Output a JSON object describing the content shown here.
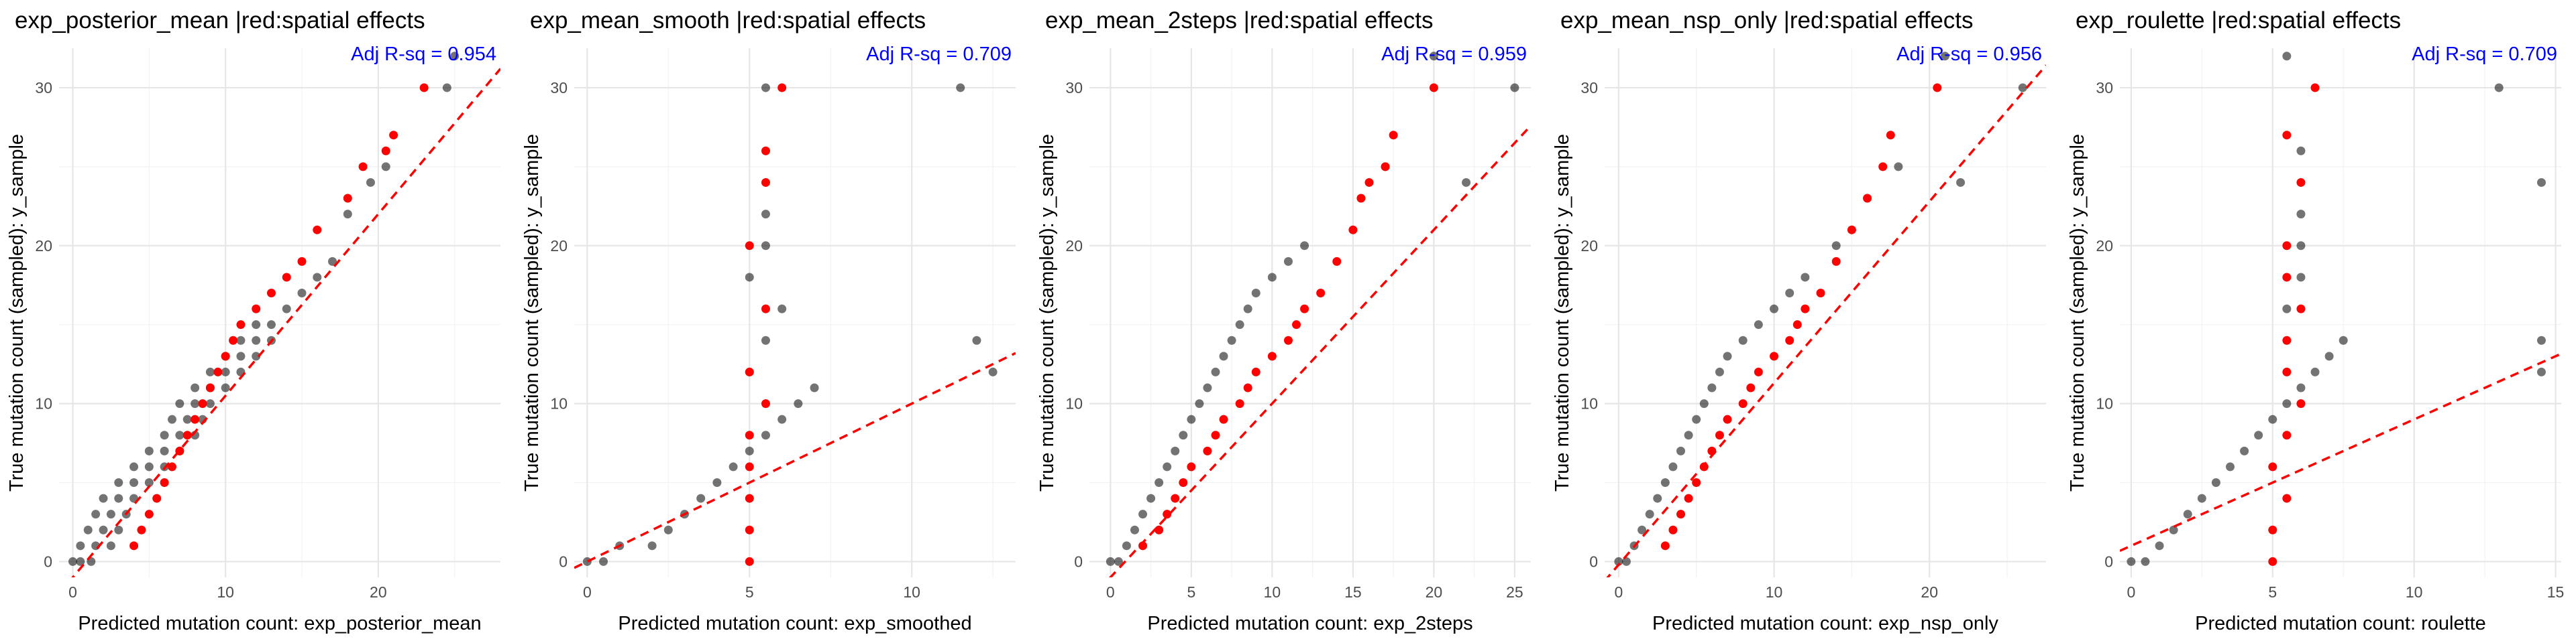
{
  "figure": {
    "ylabel": "True mutation count (sampled): y_sample",
    "colors": {
      "black_points": "#000000",
      "red_points": "#ff0000",
      "fit_line": "#ff0000",
      "annotation": "#0000ff",
      "grid": "#e6e6e6"
    }
  },
  "chart_data": [
    {
      "type": "scatter",
      "title": "exp_posterior_mean |red:spatial effects",
      "annotation": "Adj R-sq = 0.954",
      "xlabel": "Predicted mutation count: exp_posterior_mean",
      "ylabel": "True mutation count (sampled): y_sample",
      "xlim": [
        -0.9,
        28
      ],
      "ylim": [
        -1,
        32.5
      ],
      "xticks": [
        0,
        10,
        20
      ],
      "xtick_labels": [
        "0",
        "10",
        "20"
      ],
      "yticks": [
        0,
        10,
        20,
        30
      ],
      "ytick_labels": [
        "0",
        "10",
        "20",
        "30"
      ],
      "fit_line": {
        "slope": 1.15,
        "intercept": -1.0
      },
      "black_points": [
        [
          0,
          0
        ],
        [
          0.5,
          0
        ],
        [
          1.2,
          0
        ],
        [
          0.5,
          1
        ],
        [
          1.5,
          1
        ],
        [
          2.5,
          1
        ],
        [
          1,
          2
        ],
        [
          2,
          2
        ],
        [
          3,
          2
        ],
        [
          1.5,
          3
        ],
        [
          2.5,
          3
        ],
        [
          3.5,
          3
        ],
        [
          2,
          4
        ],
        [
          3,
          4
        ],
        [
          4,
          4
        ],
        [
          3,
          5
        ],
        [
          4,
          5
        ],
        [
          5,
          5
        ],
        [
          4,
          6
        ],
        [
          5,
          6
        ],
        [
          6,
          6
        ],
        [
          5,
          7
        ],
        [
          6,
          7
        ],
        [
          7,
          7
        ],
        [
          6,
          8
        ],
        [
          7,
          8
        ],
        [
          8,
          8
        ],
        [
          6.5,
          9
        ],
        [
          7.5,
          9
        ],
        [
          8.5,
          9
        ],
        [
          7,
          10
        ],
        [
          8,
          10
        ],
        [
          9,
          10
        ],
        [
          8,
          11
        ],
        [
          9,
          11
        ],
        [
          10,
          11
        ],
        [
          9,
          12
        ],
        [
          10,
          12
        ],
        [
          11,
          12
        ],
        [
          10,
          13
        ],
        [
          11,
          13
        ],
        [
          12,
          13
        ],
        [
          11,
          14
        ],
        [
          12,
          14
        ],
        [
          13,
          14
        ],
        [
          12,
          15
        ],
        [
          13,
          15
        ],
        [
          14,
          16
        ],
        [
          15,
          17
        ],
        [
          16,
          18
        ],
        [
          17,
          19
        ],
        [
          18,
          22
        ],
        [
          19.5,
          24
        ],
        [
          20.5,
          25
        ],
        [
          24.5,
          30
        ],
        [
          25,
          32
        ]
      ],
      "red_points": [
        [
          4,
          1
        ],
        [
          4.5,
          2
        ],
        [
          5,
          3
        ],
        [
          5.5,
          4
        ],
        [
          6,
          5
        ],
        [
          6.5,
          6
        ],
        [
          7,
          7
        ],
        [
          7.5,
          8
        ],
        [
          8,
          9
        ],
        [
          8.5,
          10
        ],
        [
          9,
          11
        ],
        [
          9.5,
          12
        ],
        [
          10,
          13
        ],
        [
          10.5,
          14
        ],
        [
          11,
          15
        ],
        [
          12,
          16
        ],
        [
          13,
          17
        ],
        [
          14,
          18
        ],
        [
          15,
          19
        ],
        [
          16,
          21
        ],
        [
          18,
          23
        ],
        [
          19,
          25
        ],
        [
          20.5,
          26
        ],
        [
          21,
          27
        ],
        [
          23,
          30
        ]
      ]
    },
    {
      "type": "scatter",
      "title": "exp_mean_smooth |red:spatial effects",
      "annotation": "Adj R-sq = 0.709",
      "xlabel": "Predicted mutation count: exp_smoothed",
      "ylabel": "True mutation count (sampled): y_sample",
      "xlim": [
        -0.4,
        13.2
      ],
      "ylim": [
        -1,
        32.5
      ],
      "xticks": [
        0,
        5,
        10
      ],
      "xtick_labels": [
        "0",
        "5",
        "10"
      ],
      "yticks": [
        0,
        10,
        20,
        30
      ],
      "ytick_labels": [
        "0",
        "10",
        "20",
        "30"
      ],
      "fit_line": {
        "slope": 1.0,
        "intercept": 0
      },
      "black_points": [
        [
          0,
          0
        ],
        [
          0.5,
          0
        ],
        [
          1,
          1
        ],
        [
          2,
          1
        ],
        [
          2.5,
          2
        ],
        [
          3,
          3
        ],
        [
          3.5,
          4
        ],
        [
          4,
          5
        ],
        [
          4.5,
          6
        ],
        [
          5,
          7
        ],
        [
          5.5,
          8
        ],
        [
          6,
          9
        ],
        [
          6.5,
          10
        ],
        [
          7,
          11
        ],
        [
          5,
          12
        ],
        [
          5.5,
          14
        ],
        [
          6,
          16
        ],
        [
          5,
          18
        ],
        [
          5.5,
          20
        ],
        [
          5.5,
          22
        ],
        [
          5.5,
          30
        ],
        [
          12,
          14
        ],
        [
          12.5,
          12
        ],
        [
          11.5,
          30
        ]
      ],
      "red_points": [
        [
          5,
          0
        ],
        [
          5,
          2
        ],
        [
          5,
          4
        ],
        [
          5,
          6
        ],
        [
          5,
          8
        ],
        [
          5.5,
          10
        ],
        [
          5,
          12
        ],
        [
          5.5,
          16
        ],
        [
          5,
          20
        ],
        [
          5.5,
          24
        ],
        [
          5.5,
          26
        ],
        [
          6,
          30
        ]
      ]
    },
    {
      "type": "scatter",
      "title": "exp_mean_2steps |red:spatial effects",
      "annotation": "Adj R-sq = 0.959",
      "xlabel": "Predicted mutation count: exp_2steps",
      "ylabel": "True mutation count (sampled): y_sample",
      "xlim": [
        -1.3,
        26
      ],
      "ylim": [
        -1,
        32.5
      ],
      "xticks": [
        0,
        5,
        10,
        15,
        20,
        25
      ],
      "xtick_labels": [
        "0",
        "5",
        "10",
        "15",
        "20",
        "25"
      ],
      "yticks": [
        0,
        10,
        20,
        30
      ],
      "ytick_labels": [
        "0",
        "10",
        "20",
        "30"
      ],
      "fit_line": {
        "slope": 1.1,
        "intercept": -1.0
      },
      "black_points": [
        [
          0,
          0
        ],
        [
          0.5,
          0
        ],
        [
          1,
          1
        ],
        [
          1.5,
          2
        ],
        [
          2,
          3
        ],
        [
          2.5,
          4
        ],
        [
          3,
          5
        ],
        [
          3.5,
          6
        ],
        [
          4,
          7
        ],
        [
          4.5,
          8
        ],
        [
          5,
          9
        ],
        [
          5.5,
          10
        ],
        [
          6,
          11
        ],
        [
          6.5,
          12
        ],
        [
          7,
          13
        ],
        [
          7.5,
          14
        ],
        [
          8,
          15
        ],
        [
          8.5,
          16
        ],
        [
          9,
          17
        ],
        [
          10,
          18
        ],
        [
          11,
          19
        ],
        [
          12,
          20
        ],
        [
          17,
          25
        ],
        [
          20,
          32
        ],
        [
          22,
          24
        ],
        [
          25,
          30
        ]
      ],
      "red_points": [
        [
          2,
          1
        ],
        [
          3,
          2
        ],
        [
          3.5,
          3
        ],
        [
          4,
          4
        ],
        [
          4.5,
          5
        ],
        [
          5,
          6
        ],
        [
          6,
          7
        ],
        [
          6.5,
          8
        ],
        [
          7,
          9
        ],
        [
          8,
          10
        ],
        [
          8.5,
          11
        ],
        [
          9,
          12
        ],
        [
          10,
          13
        ],
        [
          11,
          14
        ],
        [
          11.5,
          15
        ],
        [
          12,
          16
        ],
        [
          13,
          17
        ],
        [
          14,
          19
        ],
        [
          15,
          21
        ],
        [
          15.5,
          23
        ],
        [
          16,
          24
        ],
        [
          17,
          25
        ],
        [
          17.5,
          27
        ],
        [
          20,
          30
        ]
      ]
    },
    {
      "type": "scatter",
      "title": "exp_mean_nsp_only |red:spatial effects",
      "annotation": "Adj R-sq = 0.956",
      "xlabel": "Predicted mutation count: exp_nsp_only",
      "ylabel": "True mutation count (sampled): y_sample",
      "xlim": [
        -0.9,
        27.5
      ],
      "ylim": [
        -1,
        32.5
      ],
      "xticks": [
        0,
        10,
        20
      ],
      "xtick_labels": [
        "0",
        "10",
        "20"
      ],
      "yticks": [
        0,
        10,
        20,
        30
      ],
      "ytick_labels": [
        "0",
        "10",
        "20",
        "30"
      ],
      "fit_line": {
        "slope": 1.15,
        "intercept": -0.2
      },
      "black_points": [
        [
          0,
          0
        ],
        [
          0.5,
          0
        ],
        [
          1,
          1
        ],
        [
          1.5,
          2
        ],
        [
          2,
          3
        ],
        [
          2.5,
          4
        ],
        [
          3,
          5
        ],
        [
          3.5,
          6
        ],
        [
          4,
          7
        ],
        [
          4.5,
          8
        ],
        [
          5,
          9
        ],
        [
          5.5,
          10
        ],
        [
          6,
          11
        ],
        [
          6.5,
          12
        ],
        [
          7,
          13
        ],
        [
          8,
          14
        ],
        [
          9,
          15
        ],
        [
          10,
          16
        ],
        [
          11,
          17
        ],
        [
          12,
          18
        ],
        [
          14,
          20
        ],
        [
          18,
          25
        ],
        [
          21,
          32
        ],
        [
          22,
          24
        ],
        [
          26,
          30
        ]
      ],
      "red_points": [
        [
          3,
          1
        ],
        [
          3.5,
          2
        ],
        [
          4,
          3
        ],
        [
          4.5,
          4
        ],
        [
          5,
          5
        ],
        [
          5.5,
          6
        ],
        [
          6,
          7
        ],
        [
          6.5,
          8
        ],
        [
          7,
          9
        ],
        [
          8,
          10
        ],
        [
          8.5,
          11
        ],
        [
          9,
          12
        ],
        [
          10,
          13
        ],
        [
          11,
          14
        ],
        [
          11.5,
          15
        ],
        [
          12,
          16
        ],
        [
          13,
          17
        ],
        [
          14,
          19
        ],
        [
          15,
          21
        ],
        [
          16,
          23
        ],
        [
          17,
          25
        ],
        [
          17.5,
          27
        ],
        [
          20.5,
          30
        ]
      ]
    },
    {
      "type": "scatter",
      "title": "exp_roulette |red:spatial effects",
      "annotation": "Adj R-sq = 0.709",
      "xlabel": "Predicted mutation count: roulette",
      "ylabel": "True mutation count (sampled): y_sample",
      "xlim": [
        -0.4,
        15.2
      ],
      "ylim": [
        -1,
        32.5
      ],
      "xticks": [
        0,
        5,
        10,
        15
      ],
      "xtick_labels": [
        "0",
        "5",
        "10",
        "15"
      ],
      "yticks": [
        0,
        10,
        20,
        30
      ],
      "ytick_labels": [
        "0",
        "10",
        "20",
        "30"
      ],
      "fit_line": {
        "slope": 0.8,
        "intercept": 1.0
      },
      "black_points": [
        [
          0,
          0
        ],
        [
          0.5,
          0
        ],
        [
          1,
          1
        ],
        [
          1.5,
          2
        ],
        [
          2,
          3
        ],
        [
          2.5,
          4
        ],
        [
          3,
          5
        ],
        [
          3.5,
          6
        ],
        [
          4,
          7
        ],
        [
          4.5,
          8
        ],
        [
          5,
          9
        ],
        [
          5.5,
          10
        ],
        [
          6,
          11
        ],
        [
          6.5,
          12
        ],
        [
          7,
          13
        ],
        [
          7.5,
          14
        ],
        [
          5.5,
          16
        ],
        [
          6,
          18
        ],
        [
          6,
          20
        ],
        [
          6,
          22
        ],
        [
          6,
          26
        ],
        [
          5.5,
          32
        ],
        [
          13,
          30
        ],
        [
          14.5,
          24
        ],
        [
          14.5,
          14
        ],
        [
          14.5,
          12
        ]
      ],
      "red_points": [
        [
          5,
          0
        ],
        [
          5,
          2
        ],
        [
          5.5,
          4
        ],
        [
          5,
          6
        ],
        [
          5.5,
          8
        ],
        [
          6,
          10
        ],
        [
          5.5,
          12
        ],
        [
          5.5,
          14
        ],
        [
          6,
          16
        ],
        [
          5.5,
          18
        ],
        [
          5.5,
          20
        ],
        [
          6,
          24
        ],
        [
          5.5,
          27
        ],
        [
          6.5,
          30
        ]
      ]
    }
  ]
}
